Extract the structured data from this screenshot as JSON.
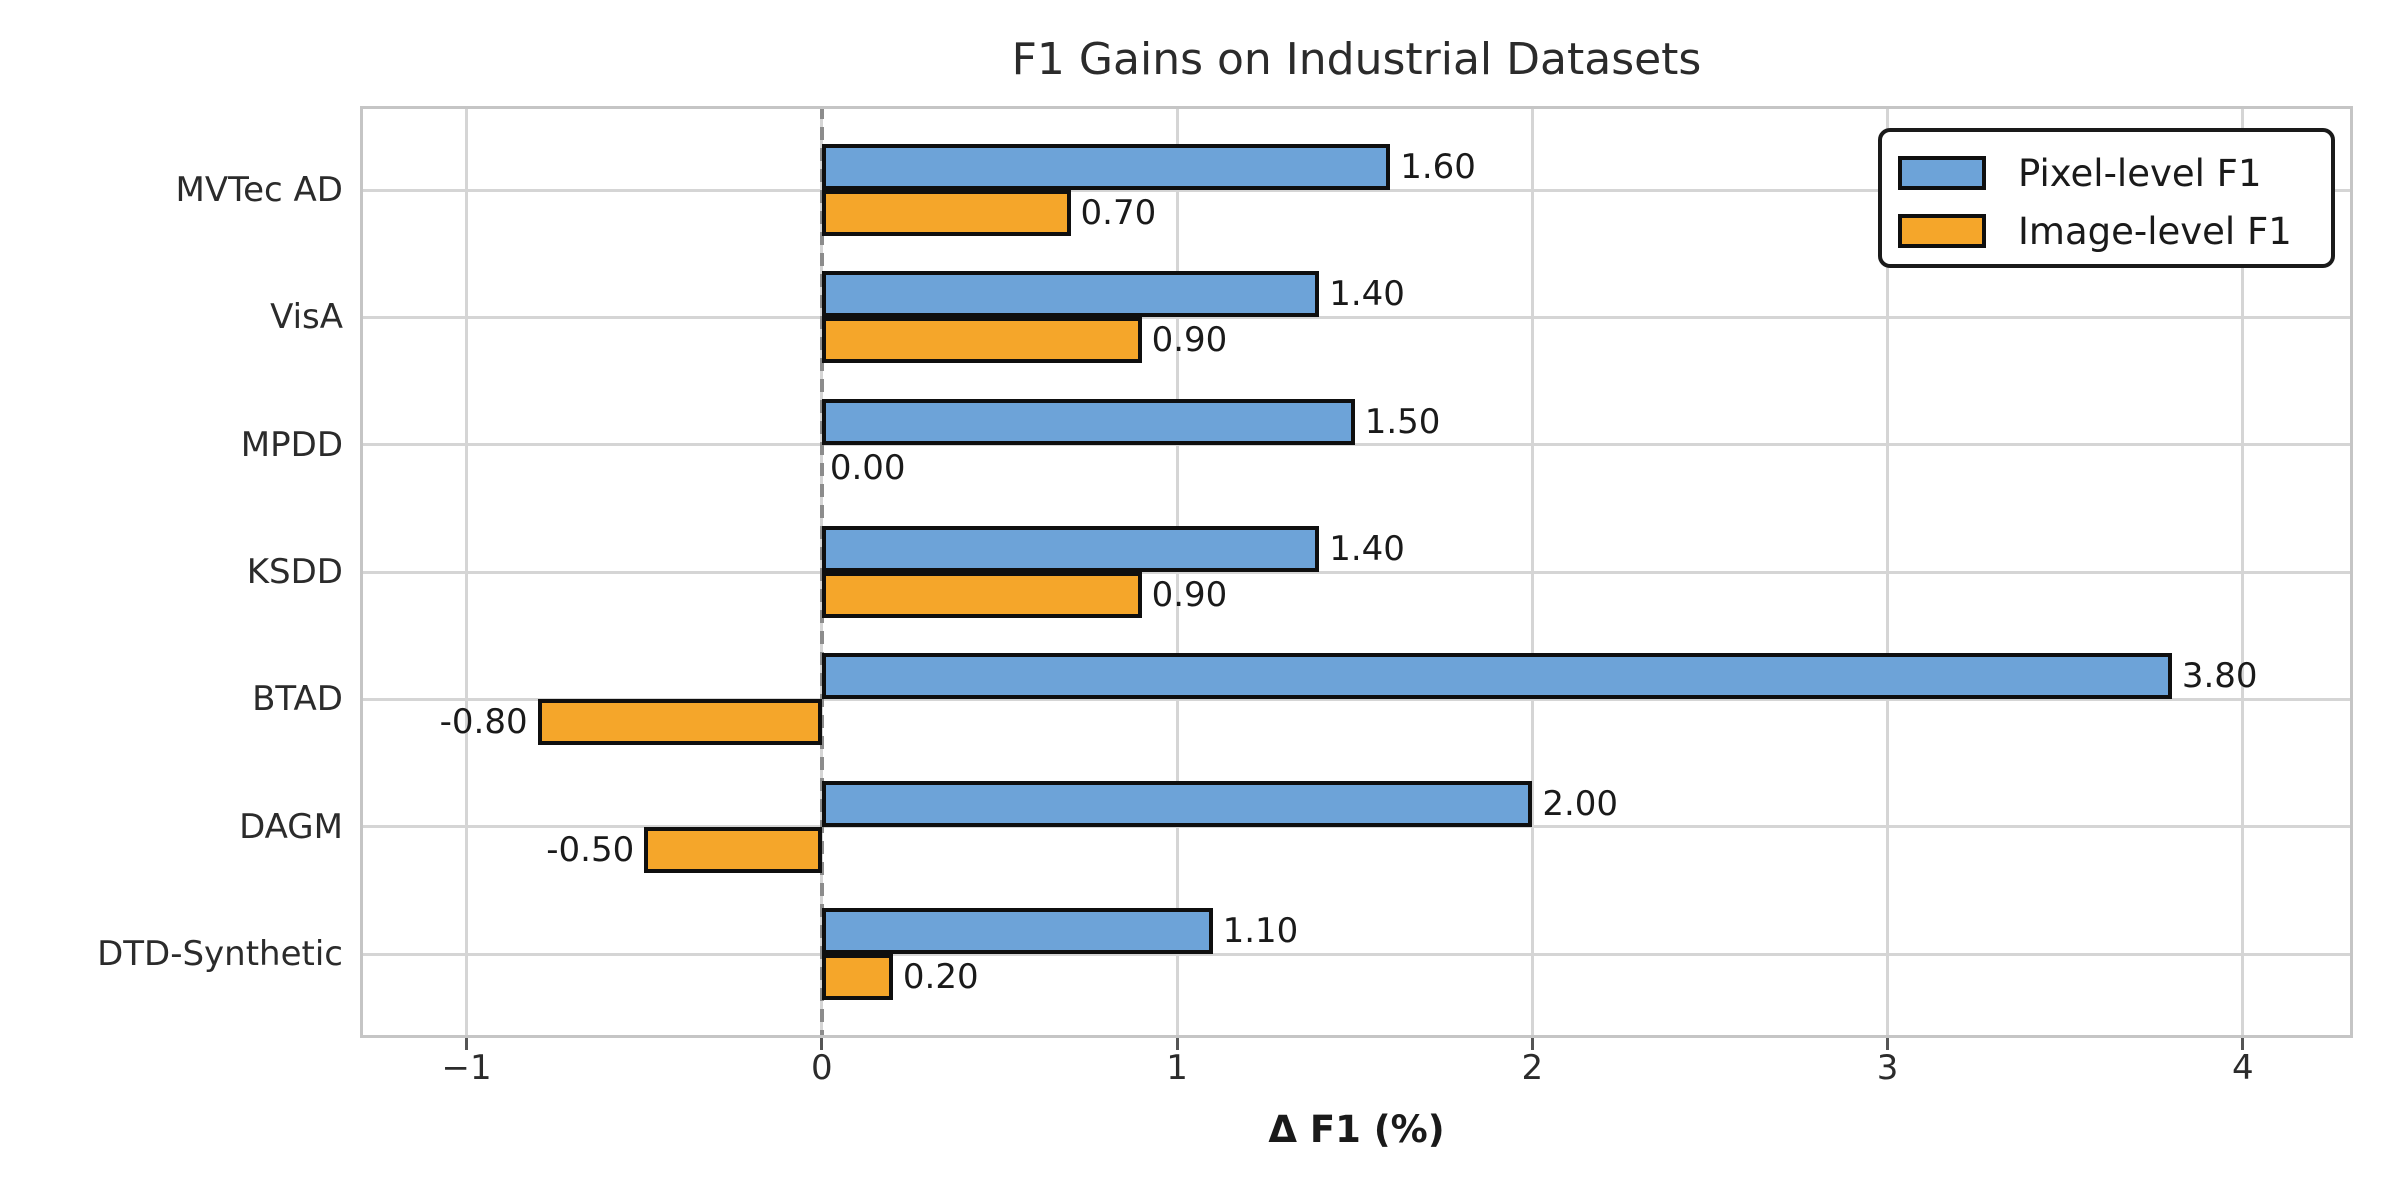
{
  "chart_data": {
    "type": "bar",
    "orientation": "horizontal",
    "title": "F1 Gains on Industrial Datasets",
    "xlabel": "Δ F1 (%)",
    "categories": [
      "MVTec AD",
      "VisA",
      "MPDD",
      "KSDD",
      "BTAD",
      "DAGM",
      "DTD-Synthetic"
    ],
    "series": [
      {
        "name": "Pixel-level F1",
        "color": "#6da3d8",
        "values": [
          1.6,
          1.4,
          1.5,
          1.4,
          3.8,
          2.0,
          1.1
        ]
      },
      {
        "name": "Image-level F1",
        "color": "#f5a62a",
        "values": [
          0.7,
          0.9,
          0.0,
          0.9,
          -0.8,
          -0.5,
          0.2
        ]
      }
    ],
    "value_label_format": ".2f",
    "xlim": [
      -1.3,
      4.31
    ],
    "xticks": [
      -1,
      0,
      1,
      2,
      3,
      4
    ],
    "xtick_labels": [
      "−1",
      "0",
      "1",
      "2",
      "3",
      "4"
    ],
    "grid": true,
    "zero_line": {
      "style": "dashed",
      "color": "#8c8c8c",
      "x": 0
    },
    "bar_edge_color": "#0f0f0f",
    "legend_position": "upper right"
  }
}
